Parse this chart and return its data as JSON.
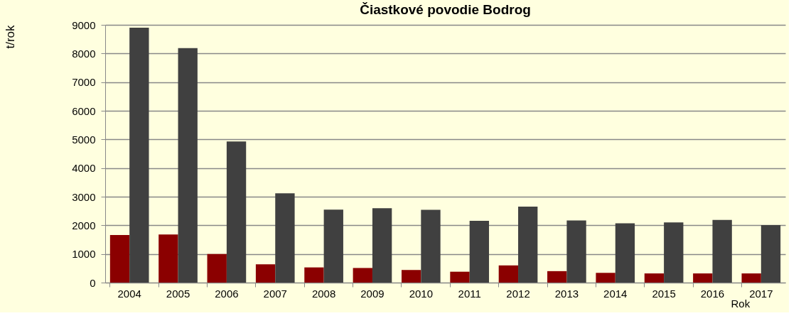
{
  "chart_data": {
    "type": "bar",
    "title": "Čiastkové povodie Bodrog",
    "xlabel": "Rok",
    "ylabel": "t/rok",
    "categories": [
      "2004",
      "2005",
      "2006",
      "2007",
      "2008",
      "2009",
      "2010",
      "2011",
      "2012",
      "2013",
      "2014",
      "2015",
      "2016",
      "2017"
    ],
    "series": [
      {
        "color": "#8b0000",
        "values": [
          1660,
          1680,
          1000,
          640,
          530,
          510,
          440,
          380,
          600,
          400,
          340,
          320,
          320,
          320
        ]
      },
      {
        "color": "#404040",
        "values": [
          8900,
          8190,
          4930,
          3120,
          2550,
          2600,
          2540,
          2160,
          2650,
          2170,
          2070,
          2100,
          2190,
          2010
        ]
      }
    ],
    "ylim": [
      0,
      9000
    ],
    "yticks": [
      0,
      1000,
      2000,
      3000,
      4000,
      5000,
      6000,
      7000,
      8000,
      9000
    ],
    "grid": "y"
  }
}
